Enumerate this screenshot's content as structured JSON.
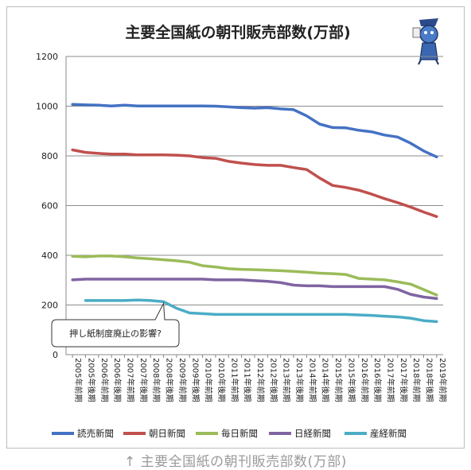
{
  "caption": "↑ 主要全国紙の朝刊販売部数(万部)",
  "chart_data": {
    "type": "line",
    "title": "主要全国紙の朝刊販売部数(万部)",
    "xlabel": "",
    "ylabel": "",
    "ylim": [
      0,
      1200
    ],
    "yticks": [
      0,
      200,
      400,
      600,
      800,
      1000,
      1200
    ],
    "grid": true,
    "legend_position": "bottom",
    "categories": [
      "2005年前期",
      "2005年後期",
      "2006年前期",
      "2006年後期",
      "2007年前期",
      "2007年後期",
      "2008年前期",
      "2008年後期",
      "2009年前期",
      "2009年後期",
      "2010年前期",
      "2010年後期",
      "2011年前期",
      "2011年後期",
      "2012年前期",
      "2012年後期",
      "2013年前期",
      "2013年後期",
      "2014年前期",
      "2014年後期",
      "2015年前期",
      "2015年後期",
      "2016年前期",
      "2016年後期",
      "2017年前期",
      "2017年後期",
      "2018年前期",
      "2018年後期",
      "2019年前期"
    ],
    "series": [
      {
        "name": "読売新聞",
        "color": "#4472c4",
        "values": [
          1007,
          1005,
          1004,
          1001,
          1004,
          1001,
          1001,
          1001,
          1001,
          1001,
          1001,
          1000,
          997,
          994,
          992,
          994,
          989,
          986,
          961,
          928,
          914,
          913,
          903,
          897,
          884,
          876,
          851,
          820,
          796
        ]
      },
      {
        "name": "朝日新聞",
        "color": "#c0504d",
        "values": [
          824,
          814,
          810,
          807,
          807,
          804,
          804,
          804,
          803,
          800,
          793,
          790,
          778,
          771,
          765,
          762,
          762,
          753,
          745,
          711,
          681,
          673,
          662,
          646,
          628,
          612,
          594,
          574,
          556
        ]
      },
      {
        "name": "毎日新聞",
        "color": "#9bbb59",
        "values": [
          396,
          394,
          397,
          397,
          394,
          389,
          386,
          382,
          378,
          372,
          358,
          353,
          346,
          343,
          342,
          340,
          338,
          335,
          332,
          328,
          326,
          323,
          307,
          304,
          301,
          293,
          284,
          262,
          240
        ]
      },
      {
        "name": "日経新聞",
        "color": "#8064a2",
        "values": [
          301,
          304,
          304,
          304,
          304,
          304,
          304,
          304,
          304,
          304,
          304,
          301,
          301,
          301,
          298,
          295,
          290,
          280,
          277,
          277,
          274,
          274,
          274,
          274,
          274,
          263,
          243,
          232,
          226
        ]
      },
      {
        "name": "産経新聞",
        "color": "#4bacc6",
        "values": [
          null,
          218,
          218,
          218,
          218,
          220,
          218,
          213,
          187,
          168,
          165,
          162,
          162,
          162,
          162,
          162,
          162,
          162,
          162,
          162,
          162,
          162,
          160,
          158,
          155,
          152,
          147,
          137,
          133
        ]
      }
    ],
    "annotations": [
      {
        "text": "押し紙制度廃止の影響?",
        "points_to": {
          "series": "産経新聞",
          "category": "2008年後期"
        }
      }
    ]
  }
}
